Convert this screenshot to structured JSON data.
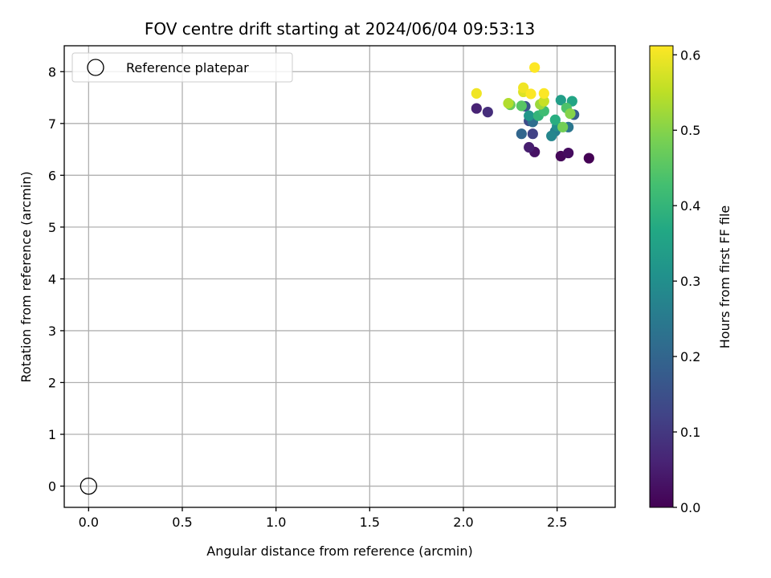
{
  "chart_data": {
    "type": "scatter",
    "title": "FOV centre drift starting at 2024/06/04 09:53:13",
    "xlabel": "Angular distance from reference (arcmin)",
    "ylabel": "Rotation from reference (arcmin)",
    "xlim": [
      -0.13,
      2.81
    ],
    "ylim": [
      -0.41,
      8.5
    ],
    "x_ticks": [
      0.0,
      0.5,
      1.0,
      1.5,
      2.0,
      2.5
    ],
    "x_tick_labels": [
      "0.0",
      "0.5",
      "1.0",
      "1.5",
      "2.0",
      "2.5"
    ],
    "y_ticks": [
      0,
      1,
      2,
      3,
      4,
      5,
      6,
      7,
      8
    ],
    "y_tick_labels": [
      "0",
      "1",
      "2",
      "3",
      "4",
      "5",
      "6",
      "7",
      "8"
    ],
    "grid": true,
    "legend": {
      "position": "top-left",
      "entries": [
        {
          "label": "Reference platepar",
          "marker": "open-circle"
        }
      ]
    },
    "reference_point": {
      "x": 0.0,
      "y": 0.0
    },
    "colorbar": {
      "label": "Hours from first FF file",
      "colormap": "viridis",
      "range": [
        0.0,
        0.612
      ],
      "ticks": [
        0.0,
        0.1,
        0.2,
        0.3,
        0.4,
        0.5,
        0.6
      ],
      "tick_labels": [
        "0.0",
        "0.1",
        "0.2",
        "0.3",
        "0.4",
        "0.5",
        "0.6"
      ]
    },
    "points": [
      {
        "x": 2.67,
        "y": 6.33,
        "c": 0.0
      },
      {
        "x": 2.52,
        "y": 6.37,
        "c": 0.01
      },
      {
        "x": 2.56,
        "y": 6.43,
        "c": 0.02
      },
      {
        "x": 2.38,
        "y": 6.45,
        "c": 0.03
      },
      {
        "x": 2.35,
        "y": 6.54,
        "c": 0.05
      },
      {
        "x": 2.07,
        "y": 7.29,
        "c": 0.06
      },
      {
        "x": 2.13,
        "y": 7.22,
        "c": 0.08
      },
      {
        "x": 2.37,
        "y": 6.8,
        "c": 0.12
      },
      {
        "x": 2.35,
        "y": 7.05,
        "c": 0.14
      },
      {
        "x": 2.33,
        "y": 7.33,
        "c": 0.16
      },
      {
        "x": 2.59,
        "y": 7.17,
        "c": 0.18
      },
      {
        "x": 2.31,
        "y": 6.8,
        "c": 0.2
      },
      {
        "x": 2.37,
        "y": 7.03,
        "c": 0.22
      },
      {
        "x": 2.56,
        "y": 6.93,
        "c": 0.24
      },
      {
        "x": 2.49,
        "y": 6.85,
        "c": 0.26
      },
      {
        "x": 2.47,
        "y": 6.76,
        "c": 0.28
      },
      {
        "x": 2.5,
        "y": 6.95,
        "c": 0.3
      },
      {
        "x": 2.35,
        "y": 7.15,
        "c": 0.32
      },
      {
        "x": 2.52,
        "y": 7.45,
        "c": 0.34
      },
      {
        "x": 2.58,
        "y": 7.43,
        "c": 0.36
      },
      {
        "x": 2.49,
        "y": 7.07,
        "c": 0.38
      },
      {
        "x": 2.4,
        "y": 7.15,
        "c": 0.4
      },
      {
        "x": 2.43,
        "y": 7.24,
        "c": 0.42
      },
      {
        "x": 2.55,
        "y": 7.3,
        "c": 0.44
      },
      {
        "x": 2.31,
        "y": 7.34,
        "c": 0.45
      },
      {
        "x": 2.25,
        "y": 7.36,
        "c": 0.47
      },
      {
        "x": 2.53,
        "y": 6.93,
        "c": 0.48
      },
      {
        "x": 2.57,
        "y": 7.19,
        "c": 0.5
      },
      {
        "x": 2.41,
        "y": 7.37,
        "c": 0.52
      },
      {
        "x": 2.24,
        "y": 7.39,
        "c": 0.54
      },
      {
        "x": 2.43,
        "y": 7.43,
        "c": 0.56
      },
      {
        "x": 2.32,
        "y": 7.61,
        "c": 0.58
      },
      {
        "x": 2.07,
        "y": 7.58,
        "c": 0.6
      },
      {
        "x": 2.32,
        "y": 7.69,
        "c": 0.6
      },
      {
        "x": 2.36,
        "y": 7.57,
        "c": 0.61
      },
      {
        "x": 2.43,
        "y": 7.58,
        "c": 0.61
      },
      {
        "x": 2.38,
        "y": 8.08,
        "c": 0.612
      }
    ]
  }
}
